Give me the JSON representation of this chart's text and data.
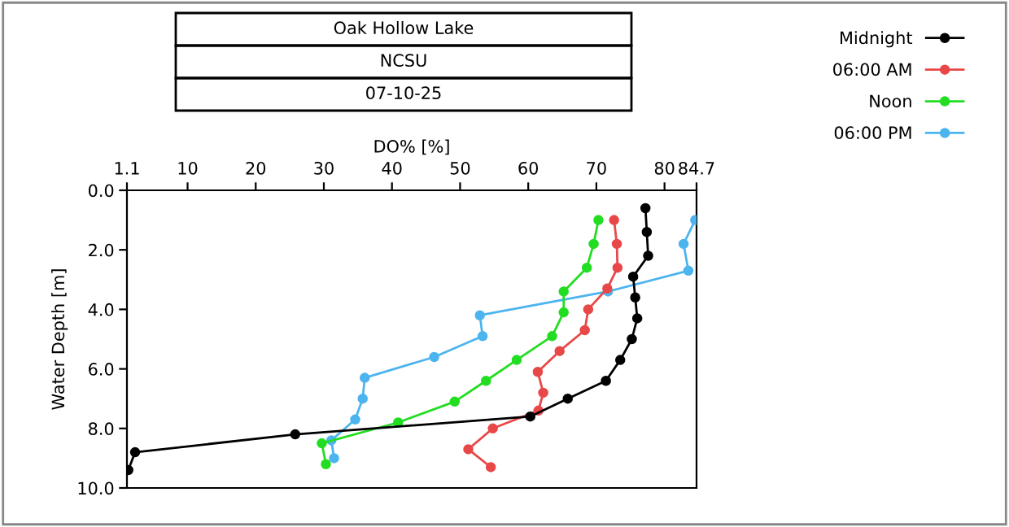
{
  "chart_data": {
    "type": "line",
    "title": "Oak Hollow Lake",
    "subtitle": "NCSU",
    "annotations": [
      "07-10-25"
    ],
    "xlabel": "DO% [%]",
    "ylabel": "Water Depth [m]",
    "xlim": [
      1.1,
      84.7
    ],
    "xticks": [
      1.1,
      10,
      20,
      30,
      40,
      50,
      60,
      70,
      80,
      84.7
    ],
    "ylim": [
      10,
      0
    ],
    "yticks": [
      {
        "value": 0,
        "label": "0.0"
      },
      {
        "value": 2,
        "label": "2.0"
      },
      {
        "value": 4,
        "label": "4.0"
      },
      {
        "value": 6,
        "label": "6.0"
      },
      {
        "value": 8,
        "label": "8.0"
      },
      {
        "value": 10,
        "label": "10.0"
      }
    ],
    "grid": false,
    "legend": "top right",
    "marker": "circle",
    "line_style": "solid",
    "series": [
      {
        "name": "Midnight",
        "color": "#000000",
        "x": [
          77.2,
          77.4,
          77.6,
          75.4,
          75.7,
          76.0,
          75.2,
          73.5,
          71.4,
          65.8,
          60.3,
          25.8,
          2.3,
          1.3
        ],
        "values": [
          0.6,
          1.4,
          2.2,
          2.9,
          3.6,
          4.3,
          5.0,
          5.7,
          6.4,
          7.0,
          7.6,
          8.2,
          8.8,
          9.4
        ]
      },
      {
        "name": "06:00 AM",
        "color": "#e84848",
        "x": [
          72.6,
          73.0,
          73.1,
          71.6,
          68.8,
          68.3,
          64.6,
          61.4,
          62.2,
          61.5,
          54.8,
          51.2,
          54.5
        ],
        "values": [
          1.0,
          1.8,
          2.6,
          3.3,
          4.0,
          4.7,
          5.4,
          6.1,
          6.8,
          7.4,
          8.0,
          8.7,
          9.3
        ]
      },
      {
        "name": "Noon",
        "color": "#22dd22",
        "x": [
          70.3,
          69.6,
          68.6,
          65.2,
          65.2,
          63.5,
          58.3,
          53.8,
          49.2,
          40.9,
          29.7,
          30.3
        ],
        "values": [
          1.0,
          1.8,
          2.6,
          3.4,
          4.1,
          4.9,
          5.7,
          6.4,
          7.1,
          7.8,
          8.5,
          9.2
        ]
      },
      {
        "name": "06:00 PM",
        "color": "#4cb4ee",
        "x": [
          84.5,
          82.8,
          83.5,
          71.7,
          52.9,
          53.3,
          46.2,
          36.0,
          35.7,
          34.6,
          31.1,
          31.5
        ],
        "values": [
          1.0,
          1.8,
          2.7,
          3.4,
          4.2,
          4.9,
          5.6,
          6.3,
          7.0,
          7.7,
          8.4,
          9.0
        ]
      }
    ]
  }
}
